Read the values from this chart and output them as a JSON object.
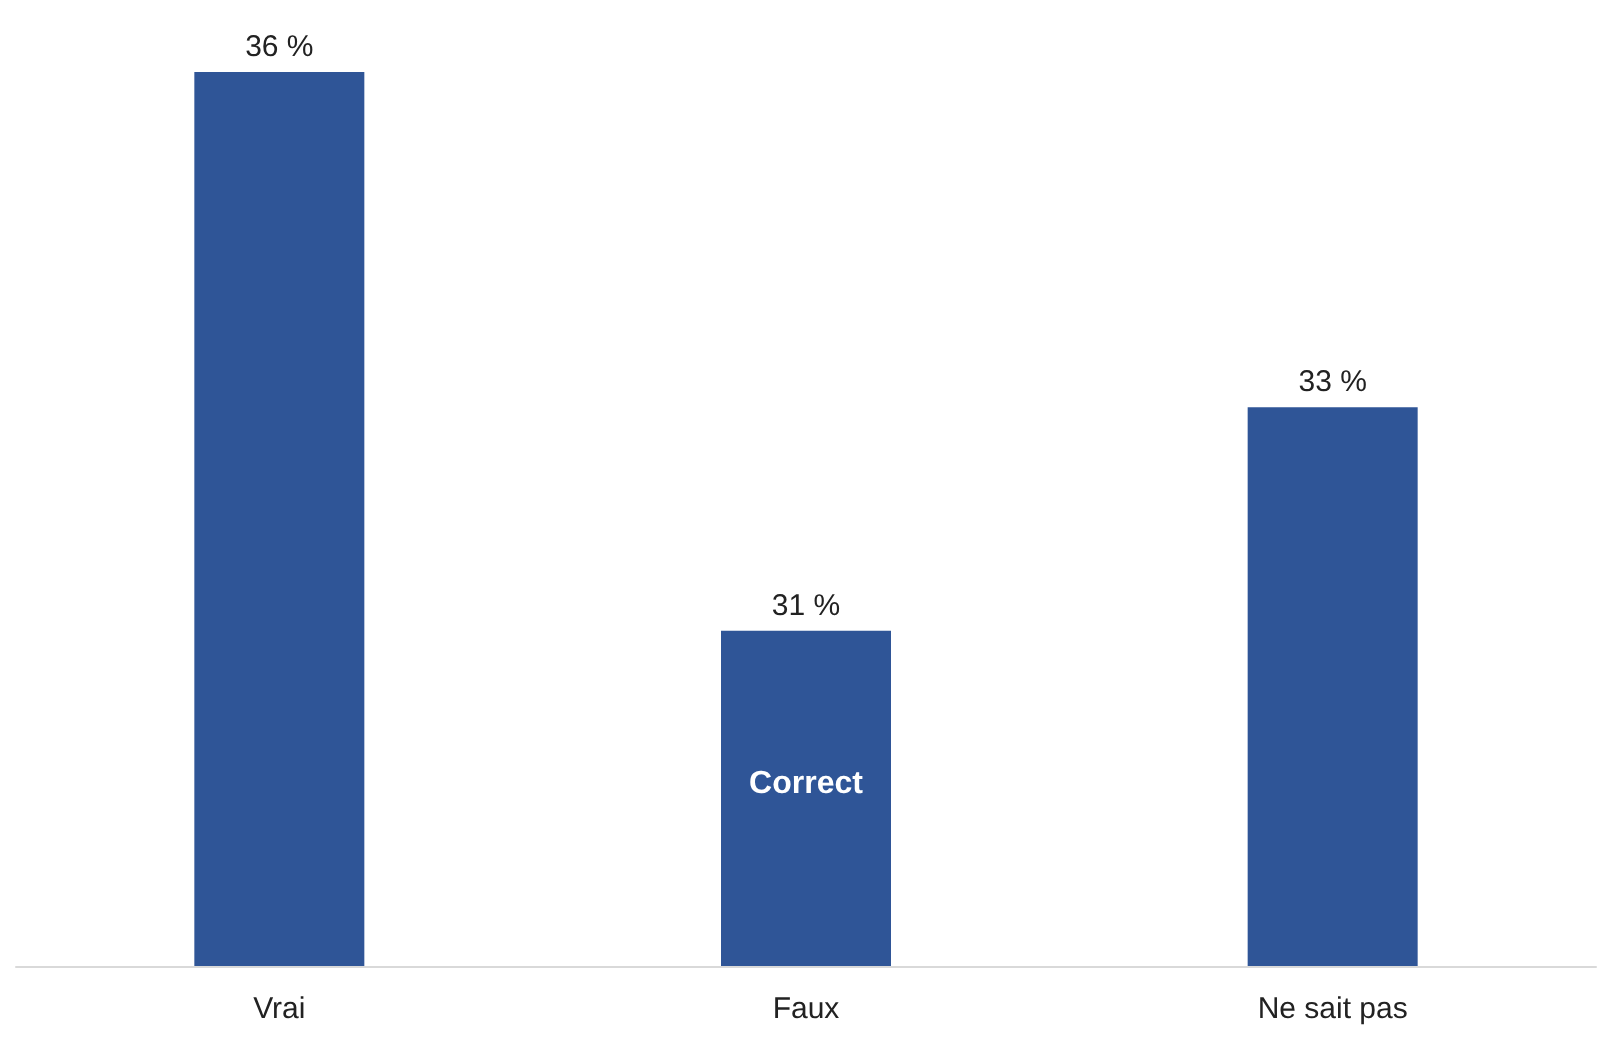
{
  "chart_data": {
    "type": "bar",
    "categories": [
      "Vrai",
      "Faux",
      "Ne sait pas"
    ],
    "values": [
      36,
      31,
      33
    ],
    "color": "#2f5597",
    "value_labels": [
      "36 %",
      "31 %",
      "33 %"
    ],
    "ylim": [
      28,
      36
    ],
    "tick_labels": "x",
    "grid": false,
    "annotations": [
      "Correct"
    ]
  }
}
